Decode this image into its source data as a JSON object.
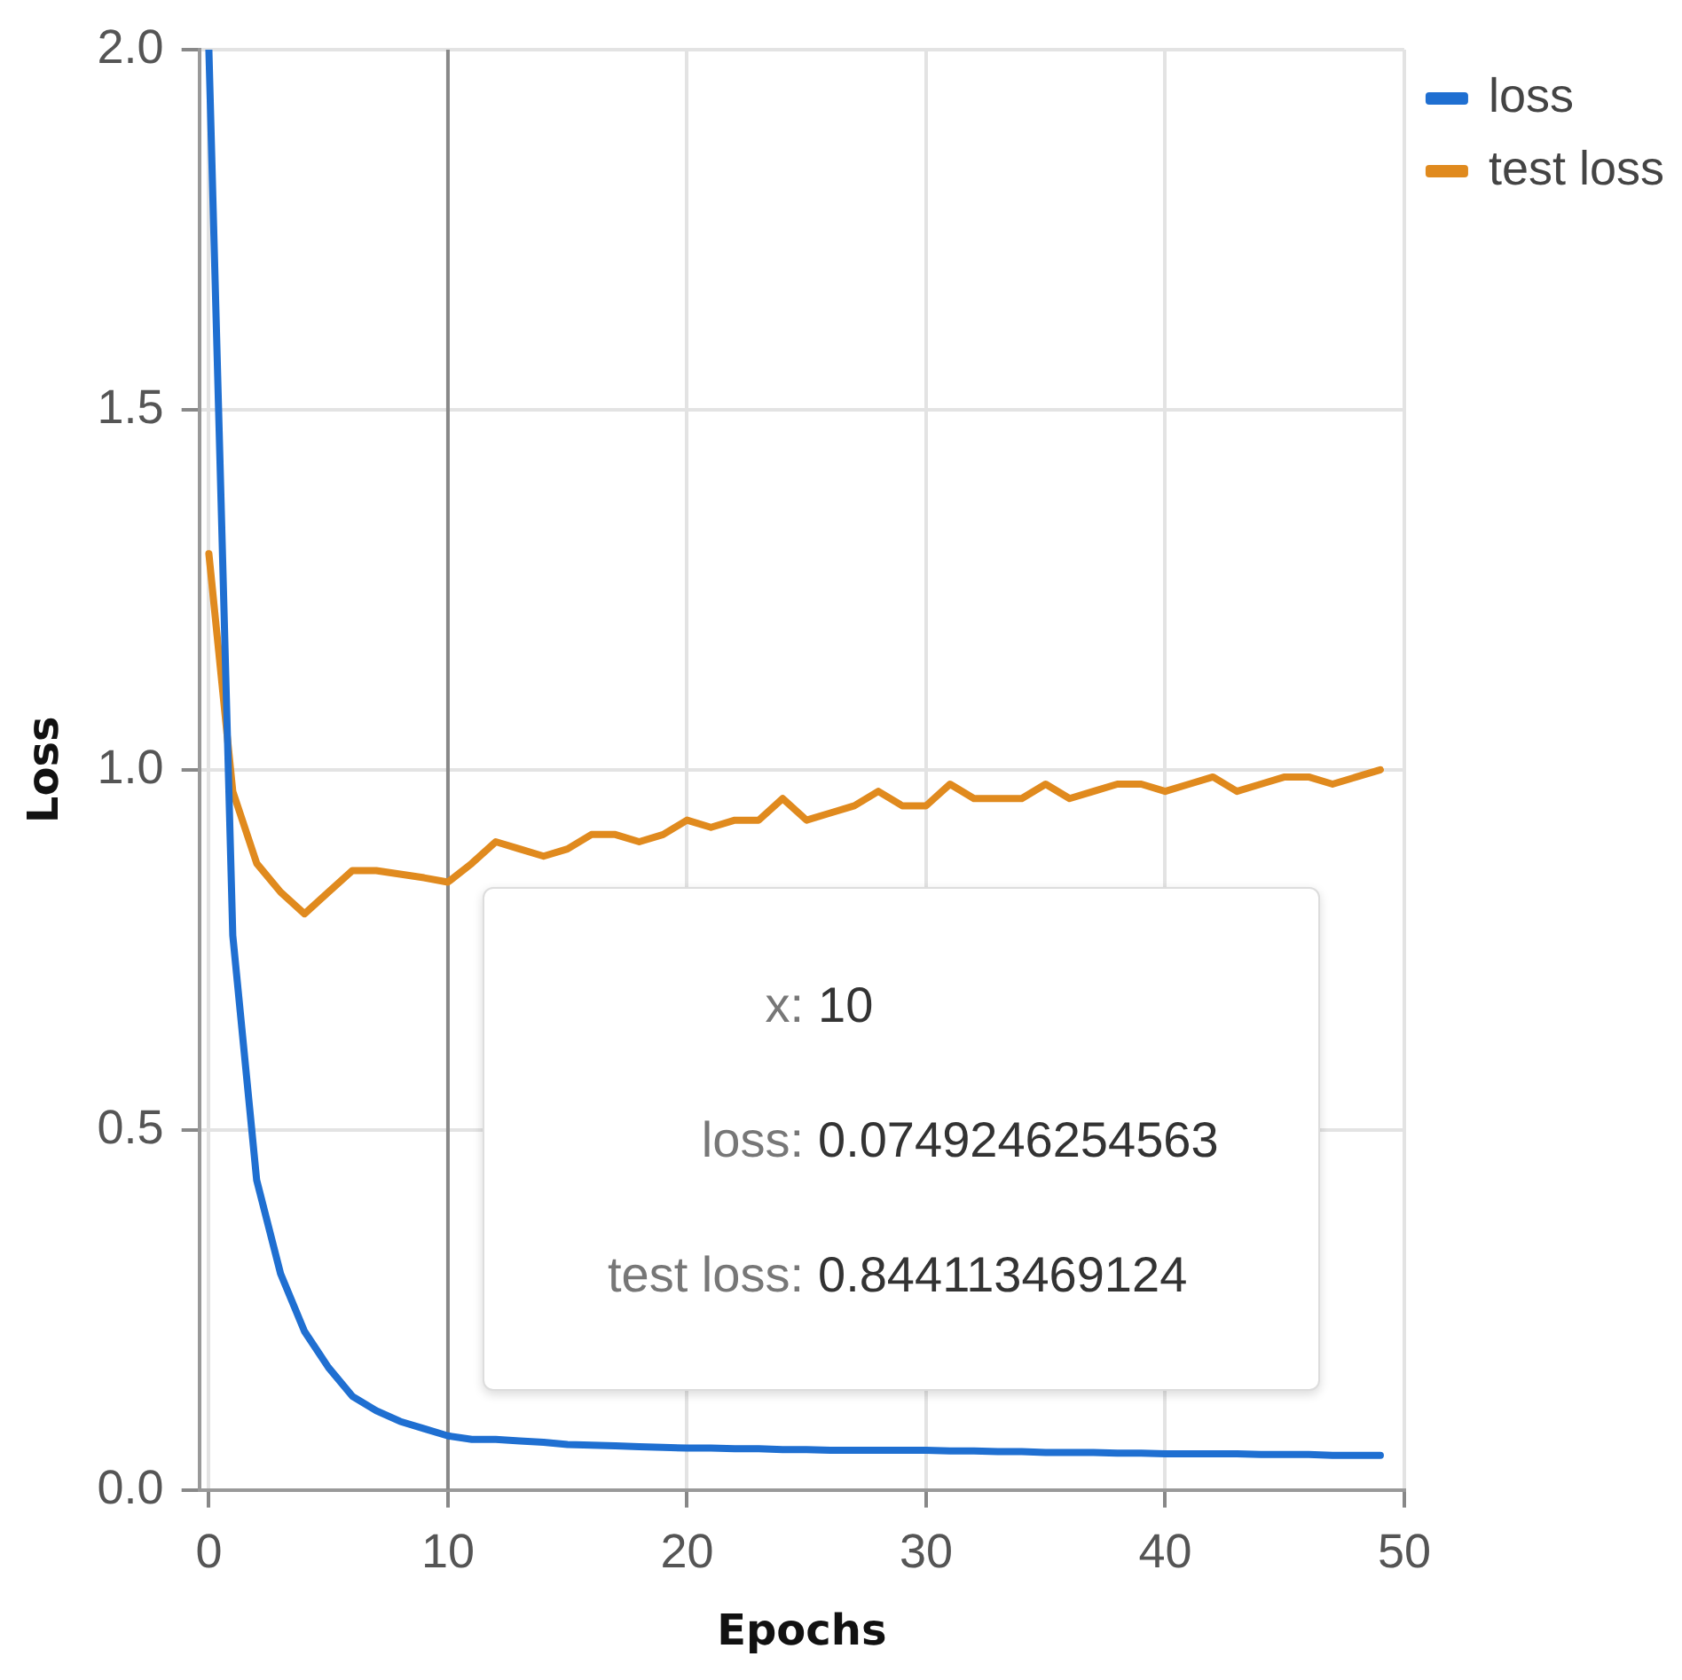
{
  "chart_data": {
    "type": "line",
    "xlabel": "Epochs",
    "ylabel": "Loss",
    "x": [
      0,
      1,
      2,
      3,
      4,
      5,
      6,
      7,
      8,
      9,
      10,
      11,
      12,
      13,
      14,
      15,
      16,
      17,
      18,
      19,
      20,
      21,
      22,
      23,
      24,
      25,
      26,
      27,
      28,
      29,
      30,
      31,
      32,
      33,
      34,
      35,
      36,
      37,
      38,
      39,
      40,
      41,
      42,
      43,
      44,
      45,
      46,
      47,
      48,
      49
    ],
    "series": [
      {
        "name": "loss",
        "color": "#1f6fd1",
        "values": [
          2.0,
          0.77,
          0.43,
          0.3,
          0.22,
          0.17,
          0.13,
          0.11,
          0.095,
          0.085,
          0.075,
          0.07,
          0.07,
          0.068,
          0.066,
          0.063,
          0.062,
          0.061,
          0.06,
          0.059,
          0.058,
          0.058,
          0.057,
          0.057,
          0.056,
          0.056,
          0.055,
          0.055,
          0.055,
          0.055,
          0.055,
          0.054,
          0.054,
          0.053,
          0.053,
          0.052,
          0.052,
          0.052,
          0.051,
          0.051,
          0.05,
          0.05,
          0.05,
          0.05,
          0.049,
          0.049,
          0.049,
          0.048,
          0.048,
          0.048
        ]
      },
      {
        "name": "test loss",
        "color": "#e08a1e",
        "values": [
          1.3,
          0.97,
          0.87,
          0.83,
          0.8,
          0.83,
          0.86,
          0.86,
          0.855,
          0.85,
          0.844,
          0.87,
          0.9,
          0.89,
          0.88,
          0.89,
          0.91,
          0.91,
          0.9,
          0.91,
          0.93,
          0.92,
          0.93,
          0.93,
          0.96,
          0.93,
          0.94,
          0.95,
          0.97,
          0.95,
          0.95,
          0.98,
          0.96,
          0.96,
          0.96,
          0.98,
          0.96,
          0.97,
          0.98,
          0.98,
          0.97,
          0.98,
          0.99,
          0.97,
          0.98,
          0.99,
          0.99,
          0.98,
          0.99,
          1.0
        ]
      }
    ],
    "xlim": [
      -0.4,
      50
    ],
    "xticks": [
      0,
      10,
      20,
      30,
      40,
      50
    ],
    "ylim": [
      0,
      2
    ],
    "yticks": [
      {
        "value": 0,
        "label": "0.0"
      },
      {
        "value": 0.5,
        "label": "0.5"
      },
      {
        "value": 1,
        "label": "1.0"
      },
      {
        "value": 1.5,
        "label": "1.5"
      },
      {
        "value": 2,
        "label": "2.0"
      }
    ],
    "grid": true,
    "legend": "top right",
    "marker": "none",
    "line_style": "solid",
    "ref_lines": [
      {
        "axis": "x",
        "value": 10,
        "label": null,
        "color": "#888888"
      }
    ],
    "annotations": [
      "x: 10",
      "loss: 0.0749246254563",
      "test loss: 0.844113469124"
    ]
  }
}
